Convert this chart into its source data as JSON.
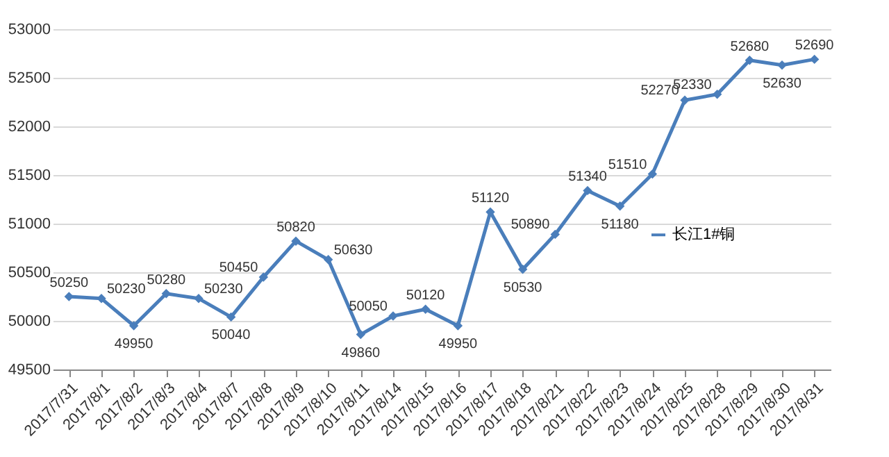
{
  "chart_data": {
    "type": "line",
    "categories": [
      "2017/7/31",
      "2017/8/1",
      "2017/8/2",
      "2017/8/3",
      "2017/8/4",
      "2017/8/7",
      "2017/8/8",
      "2017/8/9",
      "2017/8/10",
      "2017/8/11",
      "2017/8/14",
      "2017/8/15",
      "2017/8/16",
      "2017/8/17",
      "2017/8/18",
      "2017/8/21",
      "2017/8/22",
      "2017/8/23",
      "2017/8/24",
      "2017/8/25",
      "2017/8/28",
      "2017/8/29",
      "2017/8/30",
      "2017/8/31"
    ],
    "series": [
      {
        "name": "长江1#铜",
        "color": "#4a7ebb",
        "values": [
          50250,
          50230,
          49950,
          50280,
          50230,
          50040,
          50450,
          50820,
          50630,
          49860,
          50050,
          50120,
          49950,
          51120,
          50530,
          50890,
          51340,
          51180,
          51510,
          52270,
          52330,
          52680,
          52630,
          52690
        ]
      }
    ],
    "ylim": [
      49500,
      53000
    ],
    "yticks": [
      49500,
      50000,
      50500,
      51000,
      51500,
      52000,
      52500,
      53000
    ],
    "grid": "y",
    "legend": "right",
    "marker": "diamond",
    "line_style": "solid",
    "data_labels": true
  }
}
